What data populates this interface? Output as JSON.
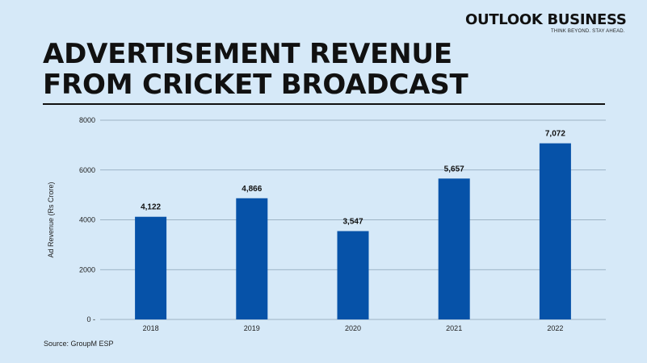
{
  "brand": {
    "name": "OUTLOOK BUSINESS",
    "tagline": "THINK BEYOND. STAY AHEAD."
  },
  "title_lines": [
    "ADVERTISEMENT REVENUE",
    "FROM CRICKET BROADCAST"
  ],
  "source": "Source: GroupM ESP",
  "colors": {
    "background": "#d6e9f8",
    "bar": "#0652a8",
    "text": "#111111",
    "grid": "#8aa1b5"
  },
  "chart_data": {
    "type": "bar",
    "title": "ADVERTISEMENT REVENUE FROM CRICKET BROADCAST",
    "xlabel": "",
    "ylabel": "Ad Revenue (Rs Crore)",
    "categories": [
      "2018",
      "2019",
      "2020",
      "2021",
      "2022"
    ],
    "values": [
      4122,
      4866,
      3547,
      5657,
      7072
    ],
    "data_labels": [
      "4,122",
      "4,866",
      "3,547",
      "5,657",
      "7,072"
    ],
    "yticks": [
      0,
      2000,
      4000,
      6000,
      8000
    ],
    "ytick_labels": [
      "0",
      "2000",
      "4000",
      "6000",
      "8000"
    ],
    "ylim": [
      0,
      8000
    ],
    "grid": true,
    "legend": "none"
  }
}
